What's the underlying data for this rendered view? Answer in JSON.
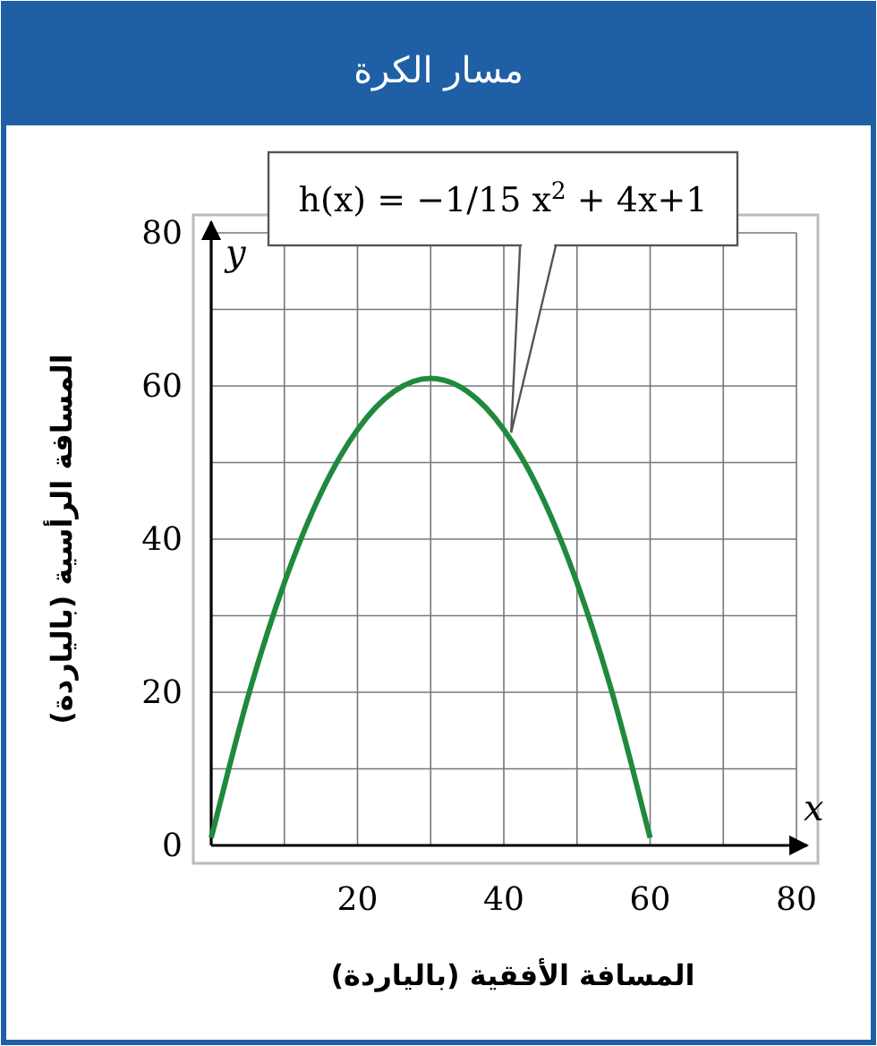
{
  "chart_data": {
    "type": "line",
    "title": "مسار الكرة",
    "xlabel": "المسافة الأفقية (بالياردة)",
    "ylabel": "المسافة الرأسية (بالياردة)",
    "x": [
      0,
      5,
      10,
      15,
      20,
      25,
      30,
      35,
      40,
      45,
      50,
      55,
      60
    ],
    "series": [
      {
        "color": "#1f8a3c",
        "values": [
          1,
          19.3,
          34.3,
          46,
          54.3,
          59.3,
          61,
          59.3,
          54.3,
          46,
          34.3,
          19.3,
          1
        ]
      }
    ],
    "xlim": [
      0,
      80
    ],
    "ylim": [
      0,
      80
    ],
    "xticks": [
      {
        "value": 0,
        "label": null
      },
      {
        "value": 10,
        "label": null
      },
      20,
      {
        "value": 30,
        "label": null
      },
      40,
      {
        "value": 50,
        "label": null
      },
      60,
      {
        "value": 70,
        "label": null
      },
      80
    ],
    "yticks": [
      0,
      {
        "value": 10,
        "label": null
      },
      20,
      {
        "value": 30,
        "label": null
      },
      40,
      {
        "value": 50,
        "label": null
      },
      60,
      {
        "value": 70,
        "label": null
      },
      80
    ],
    "grid": true,
    "marker": "none",
    "line_style": "solid",
    "annotations": [
      {
        "text": "h(x) = −1/15 x$^{2}$ + 4x+1",
        "x": 41,
        "y": 53.9
      },
      "x",
      "y"
    ]
  }
}
